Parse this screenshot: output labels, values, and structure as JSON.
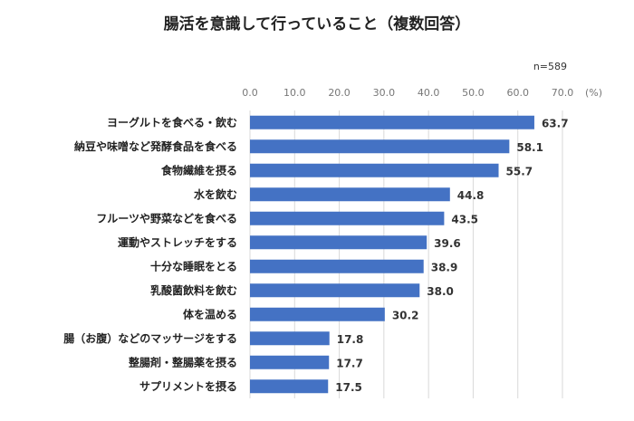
{
  "chart_data": {
    "type": "bar",
    "orientation": "horizontal",
    "title": "腸活を意識して行っていること（複数回答）",
    "note": "n=589",
    "unit_label": "(%)",
    "xlim": [
      0,
      70
    ],
    "ticks": [
      "0.0",
      "10.0",
      "20.0",
      "30.0",
      "40.0",
      "50.0",
      "60.0",
      "70.0"
    ],
    "tick_values": [
      0,
      10,
      20,
      30,
      40,
      50,
      60,
      70
    ],
    "grid": true,
    "categories": [
      "ヨーグルトを食べる・飲む",
      "納豆や味噌など発酵食品を食べる",
      "食物繊維を摂る",
      "水を飲む",
      "フルーツや野菜などを食べる",
      "運動やストレッチをする",
      "十分な睡眠をとる",
      "乳酸菌飲料を飲む",
      "体を温める",
      "腸（お腹）などのマッサージをする",
      "整腸剤・整腸薬を摂る",
      "サプリメントを摂る"
    ],
    "values": [
      63.7,
      58.1,
      55.7,
      44.8,
      43.5,
      39.6,
      38.9,
      38.0,
      30.2,
      17.8,
      17.7,
      17.5
    ],
    "value_labels": [
      "63.7",
      "58.1",
      "55.7",
      "44.8",
      "43.5",
      "39.6",
      "38.9",
      "38.0",
      "30.2",
      "17.8",
      "17.7",
      "17.5"
    ],
    "bar_color": "#4472C4",
    "grid_color": "#d9d9d9"
  }
}
